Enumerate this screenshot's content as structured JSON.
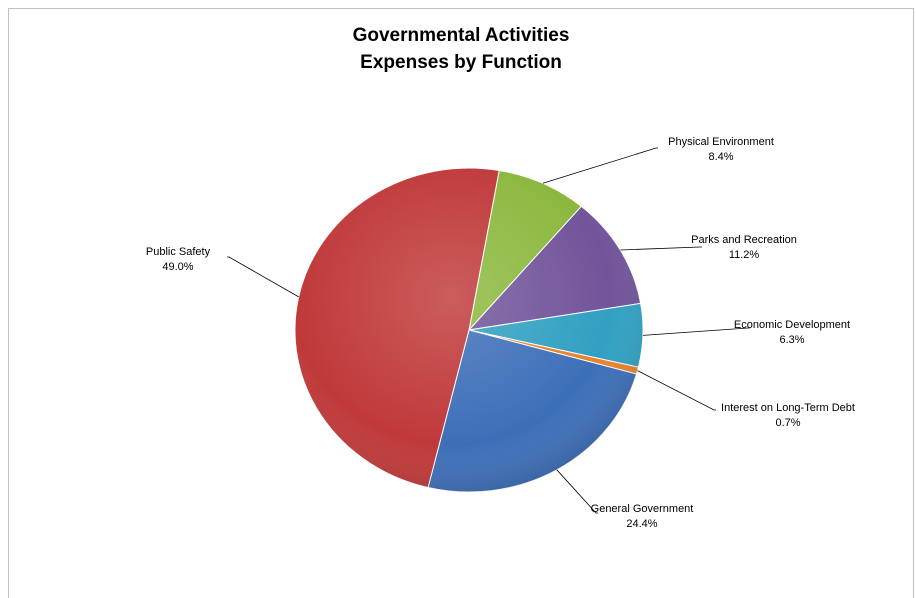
{
  "chart_data": {
    "type": "pie",
    "title": "Governmental Activities",
    "subtitle": "Expenses by Function",
    "slices": [
      {
        "name": "Physical Environment",
        "value": 8.4,
        "label": "8.4%",
        "color": "#8cb83e"
      },
      {
        "name": "Parks and Recreation",
        "value": 11.2,
        "label": "11.2%",
        "color": "#71549a"
      },
      {
        "name": "Economic Development",
        "value": 6.3,
        "label": "6.3%",
        "color": "#31a0c2"
      },
      {
        "name": "Interest on Long-Term  Debt",
        "value": 0.7,
        "label": "0.7%",
        "color": "#e8822c"
      },
      {
        "name": "General Government",
        "value": 24.4,
        "label": "24.4%",
        "color": "#3d6fb8"
      },
      {
        "name": "Public Safety",
        "value": 49.0,
        "label": "49.0%",
        "color": "#c0393a"
      }
    ]
  }
}
